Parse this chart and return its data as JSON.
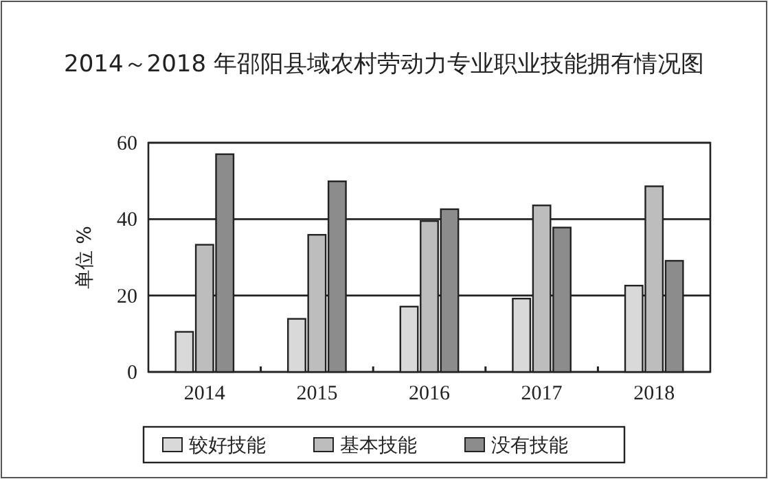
{
  "chart_data": {
    "type": "bar",
    "title": "2014～2018 年邵阳县域农村劳动力专业职业技能拥有情况图",
    "ylabel": "单位 %",
    "categories": [
      "2014",
      "2015",
      "2016",
      "2017",
      "2018"
    ],
    "series": [
      {
        "name": "较好技能",
        "color": "#d9d9d9",
        "values": [
          10.5,
          13.9,
          17.1,
          19.2,
          22.6
        ]
      },
      {
        "name": "基本技能",
        "color": "#bdbdbd",
        "values": [
          33.3,
          35.9,
          39.5,
          43.6,
          48.6
        ]
      },
      {
        "name": "没有技能",
        "color": "#8c8c8c",
        "values": [
          57.0,
          49.9,
          42.6,
          37.8,
          29.1
        ]
      }
    ],
    "ylim": [
      0,
      60
    ],
    "yticks": [
      0,
      20,
      40,
      60
    ],
    "grid": "y",
    "legend": "bottom"
  }
}
